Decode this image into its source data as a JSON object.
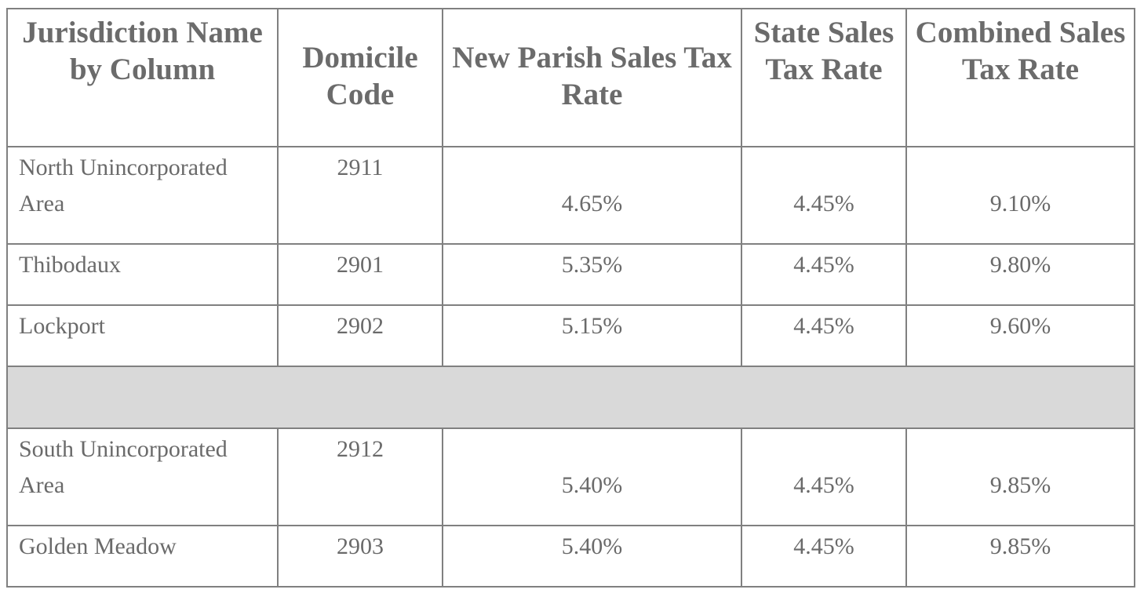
{
  "headers": {
    "name": "Jurisdiction Name by Column",
    "code": "Domicile Code",
    "parish": "New Parish Sales Tax Rate",
    "state": "State Sales Tax Rate",
    "combined": "Combined Sales Tax Rate"
  },
  "rows": [
    {
      "name": "North Unincorporated Area",
      "code": "2911",
      "parish": "4.65%",
      "state": "4.45%",
      "combined": "9.10%"
    },
    {
      "name": "Thibodaux",
      "code": "2901",
      "parish": "5.35%",
      "state": "4.45%",
      "combined": "9.80%"
    },
    {
      "name": "Lockport",
      "code": "2902",
      "parish": "5.15%",
      "state": "4.45%",
      "combined": "9.60%"
    },
    {
      "name": "South Unincorporated Area",
      "code": "2912",
      "parish": "5.40%",
      "state": "4.45%",
      "combined": "9.85%"
    },
    {
      "name": "Golden Meadow",
      "code": "2903",
      "parish": "5.40%",
      "state": "4.45%",
      "combined": "9.85%"
    }
  ],
  "colors": {
    "text": "#6a6a6a",
    "border": "#808080",
    "separator_fill": "#d9d9d9"
  }
}
